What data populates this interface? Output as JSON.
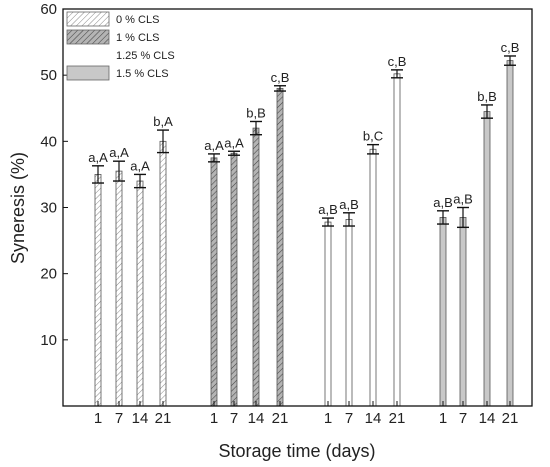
{
  "chart_data": {
    "type": "bar",
    "xlabel": "Storage time (days)",
    "ylabel": "Syneresis (%)",
    "ylim": [
      0,
      60
    ],
    "yticks": [
      10,
      20,
      30,
      40,
      50,
      60
    ],
    "grid": false,
    "legend_position": "top-left",
    "categories": [
      "1",
      "7",
      "14",
      "21"
    ],
    "series": [
      {
        "name": "0 % CLS",
        "fill": "hatch-light",
        "color": "#ffffff",
        "values": [
          35.0,
          35.5,
          34.0,
          40.0
        ],
        "errors": [
          1.3,
          1.5,
          1.0,
          1.7
        ],
        "labels": [
          "a,A",
          "a,A",
          "a,A",
          "b,A"
        ]
      },
      {
        "name": "1 % CLS",
        "fill": "hatch-dark",
        "color": "#b4b4b4",
        "values": [
          37.5,
          38.2,
          42.0,
          48.0
        ],
        "errors": [
          0.6,
          0.3,
          1.0,
          0.4
        ],
        "labels": [
          "a,A",
          "a,A",
          "b,B",
          "c,B"
        ]
      },
      {
        "name": "1.25 % CLS",
        "fill": "solid",
        "color": "#ffffff",
        "values": [
          27.8,
          28.2,
          38.8,
          50.2
        ],
        "errors": [
          0.6,
          1.0,
          0.7,
          0.6
        ],
        "labels": [
          "a,B",
          "a,B",
          "b,C",
          "c,B"
        ]
      },
      {
        "name": "1.5 % CLS",
        "fill": "solid",
        "color": "#c8c8c8",
        "values": [
          28.5,
          28.5,
          44.5,
          52.2
        ],
        "errors": [
          1.0,
          1.5,
          1.0,
          0.7
        ],
        "labels": [
          "a,B",
          "a,B",
          "b,B",
          "c,B"
        ]
      }
    ]
  }
}
